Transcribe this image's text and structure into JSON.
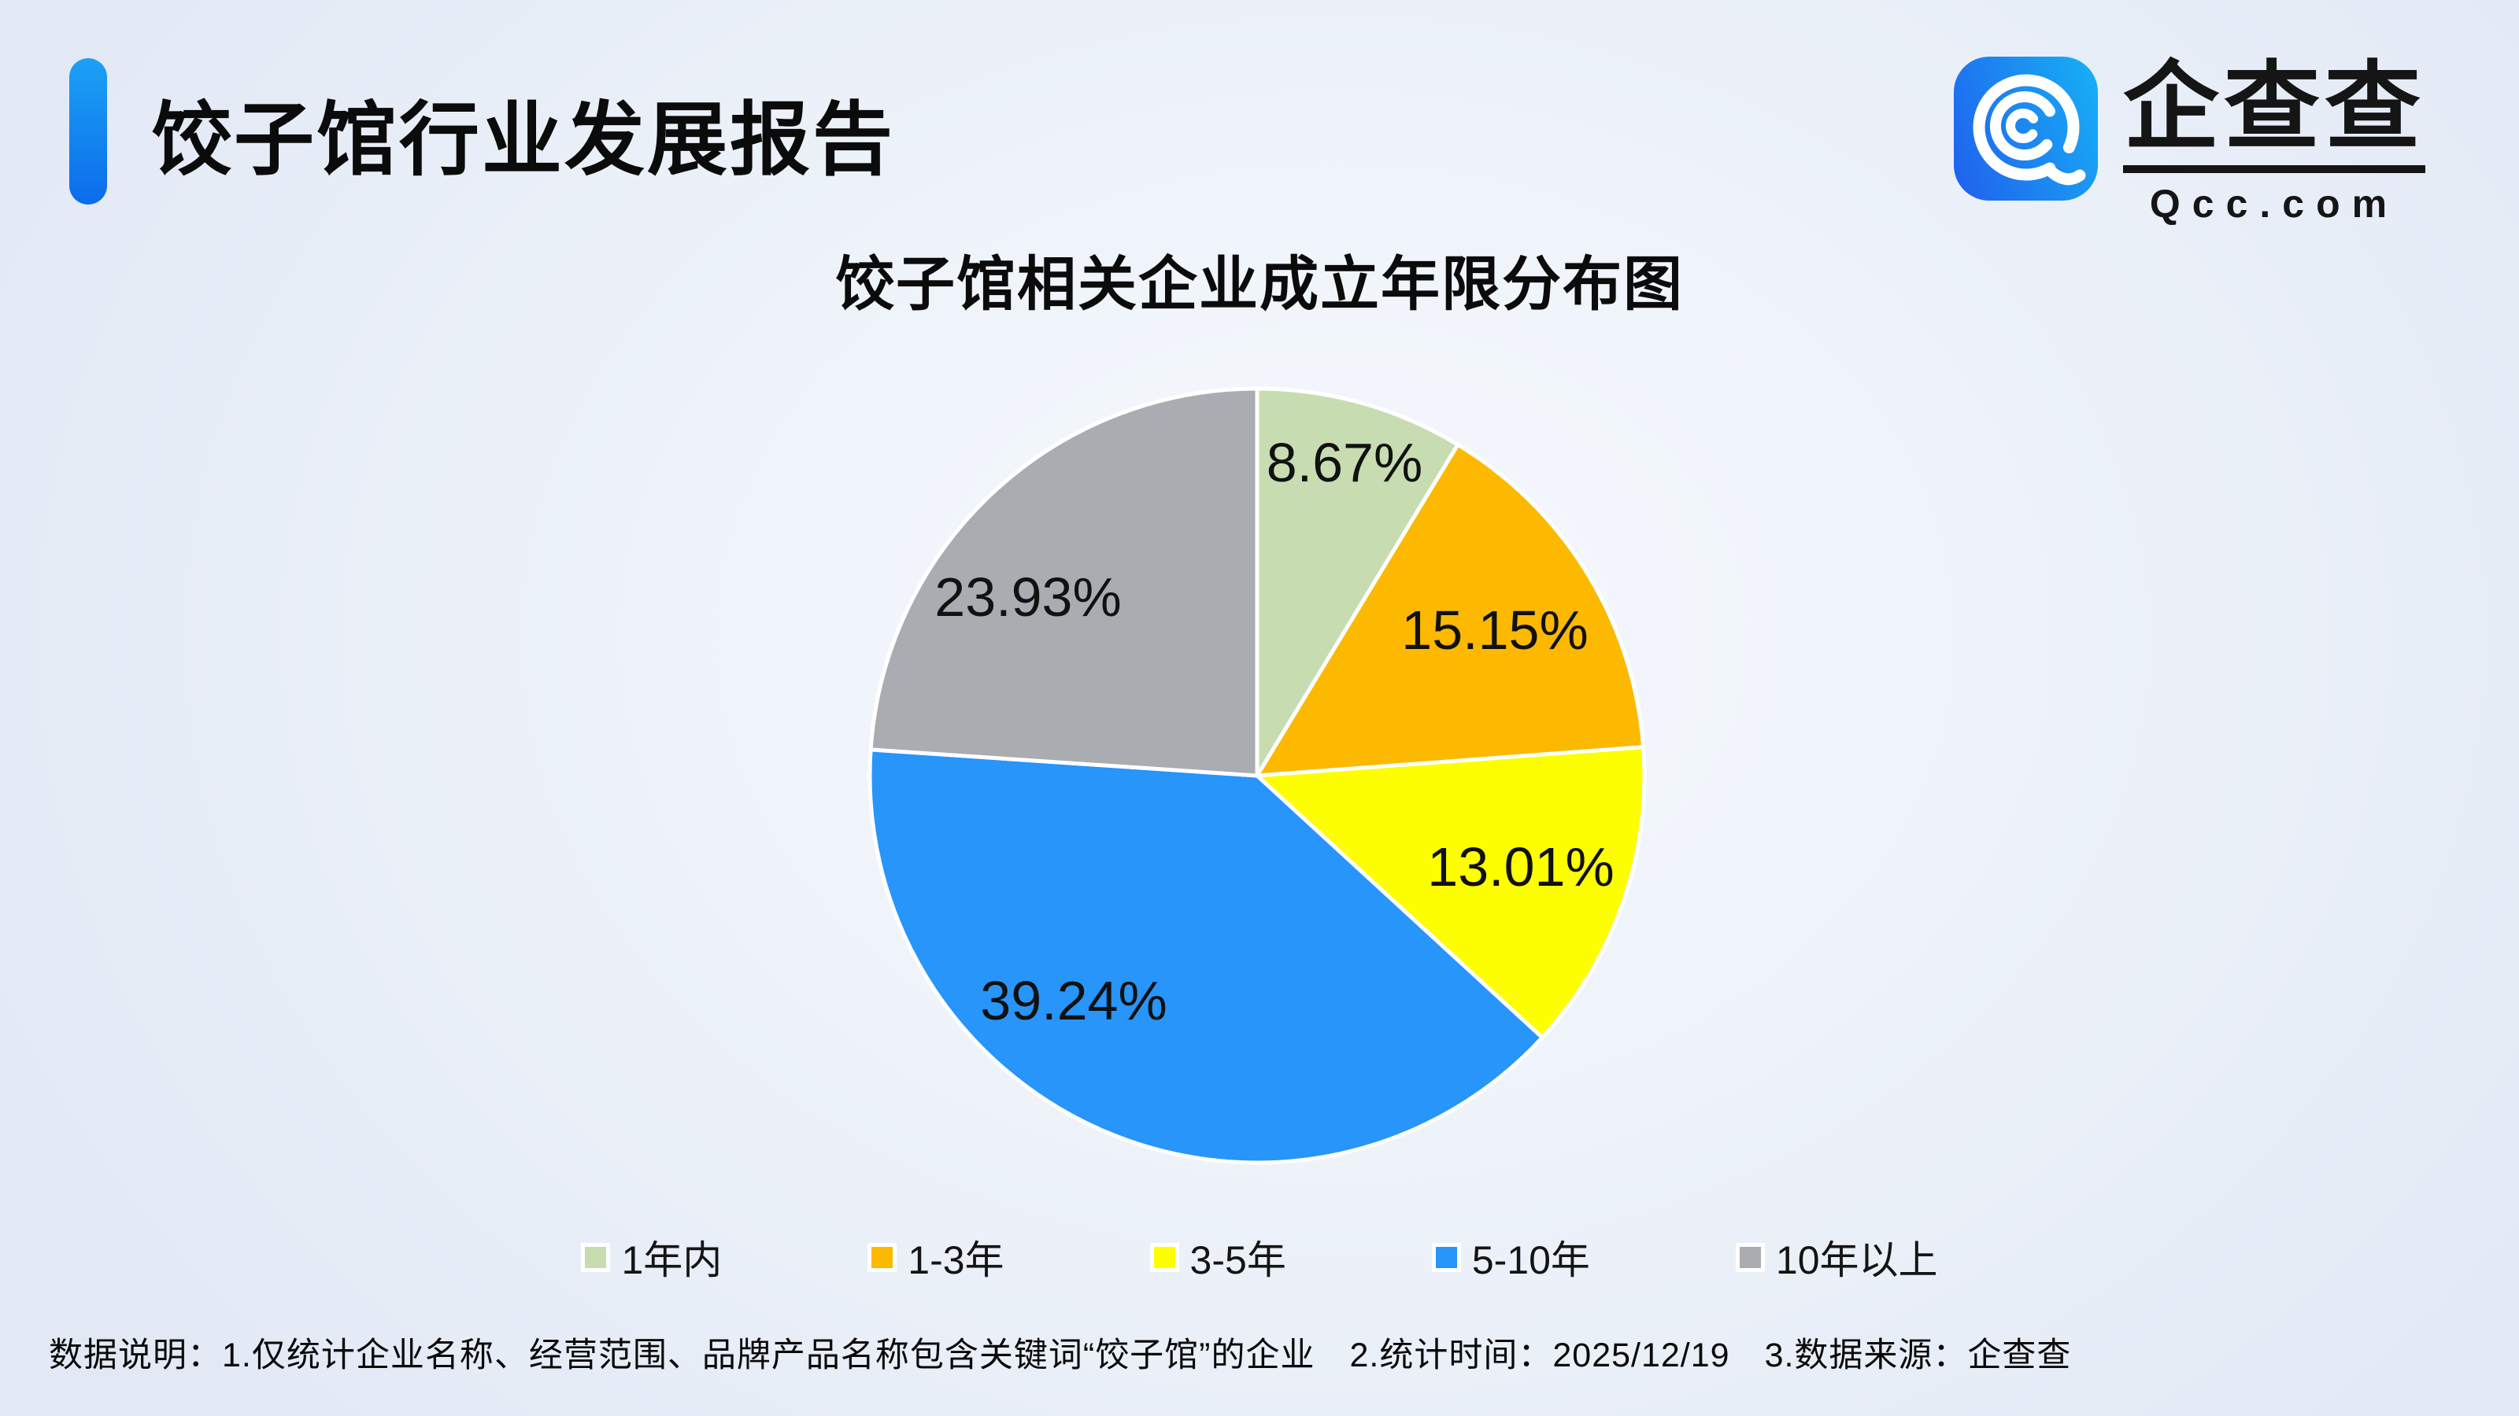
{
  "header": {
    "title": "饺子馆行业发展报告"
  },
  "logo": {
    "brand": "企查查",
    "domain": "Qcc.com",
    "icon": "qcc-magnifier-icon",
    "icon_gradient": [
      "#1f66ee",
      "#18aaf5"
    ]
  },
  "chart_data": {
    "type": "pie",
    "title": "饺子馆相关企业成立年限分布图",
    "categories": [
      "1年内",
      "1-3年",
      "3-5年",
      "5-10年",
      "10年以上"
    ],
    "values": [
      8.67,
      15.15,
      13.01,
      39.24,
      23.93
    ],
    "labels": [
      "8.67%",
      "15.15%",
      "13.01%",
      "39.24%",
      "23.93%"
    ],
    "colors": [
      "#c8dcb2",
      "#fcb900",
      "#fdff00",
      "#2795fa",
      "#a9acb0"
    ],
    "start_angle_deg": 0,
    "direction": "clockwise",
    "slice_border_color": "#ffffff",
    "label_color": "#111111",
    "legend_position": "bottom"
  },
  "footer": {
    "note": "数据说明：1.仅统计企业名称、经营范围、品牌产品名称包含关键词“饺子馆”的企业　2.统计时间：2025/12/19　3.数据来源：企查查"
  }
}
